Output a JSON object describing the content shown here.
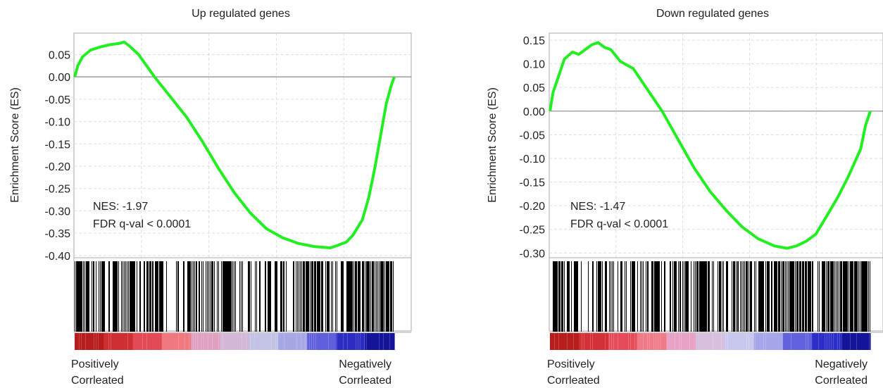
{
  "chart_data": [
    {
      "type": "line",
      "title": "Up regulated genes",
      "ylabel": "Enrichment Score (ES)",
      "ylim": [
        -0.405,
        0.098
      ],
      "yticks": [
        0.05,
        0.0,
        -0.05,
        -0.1,
        -0.15,
        -0.2,
        -0.25,
        -0.3,
        -0.35,
        -0.4
      ],
      "ytick_labels": [
        "0.05",
        "0.00",
        "-0.05",
        "-0.10",
        "-0.15",
        "-0.20",
        "-0.25",
        "-0.30",
        "-0.35",
        "-0.40"
      ],
      "grid": true,
      "line_color": "#22ee22",
      "annotation_lines": [
        "NES: -1.97",
        "FDR q-val < 0.0001"
      ],
      "x_left_label": [
        "Positively",
        "Corrleated"
      ],
      "x_right_label": [
        "Negatively",
        "Corrleated"
      ],
      "series": [
        {
          "x": [
            0,
            0.01,
            0.025,
            0.05,
            0.08,
            0.11,
            0.14,
            0.155,
            0.17,
            0.2,
            0.25,
            0.3,
            0.35,
            0.4,
            0.45,
            0.5,
            0.55,
            0.6,
            0.65,
            0.7,
            0.75,
            0.8,
            0.82,
            0.85,
            0.87,
            0.9,
            0.92,
            0.94,
            0.96,
            0.975,
            0.99,
            1.0
          ],
          "y": [
            0,
            0.025,
            0.045,
            0.06,
            0.067,
            0.072,
            0.075,
            0.078,
            0.07,
            0.05,
            0.0,
            -0.045,
            -0.09,
            -0.145,
            -0.205,
            -0.26,
            -0.305,
            -0.34,
            -0.36,
            -0.373,
            -0.38,
            -0.383,
            -0.378,
            -0.37,
            -0.355,
            -0.32,
            -0.27,
            -0.2,
            -0.12,
            -0.06,
            -0.02,
            0.0
          ]
        }
      ],
      "hits_density": [
        0.9,
        0.7,
        0.6,
        0.9,
        0.5,
        0.8,
        0.4,
        0.6,
        0.7,
        0.9,
        0.8,
        0.6,
        0.5,
        0.7,
        0.6,
        0.8,
        0.9,
        0.7,
        0.8,
        0.95,
        1.0,
        1.0
      ],
      "colorbar": [
        "#b81d1d",
        "#cf2f33",
        "#e24b55",
        "#f07880",
        "#e0a0c0",
        "#d3b8d8",
        "#c3c3e6",
        "#a7a7e6",
        "#6060dc",
        "#2c2cc2",
        "#14149a"
      ]
    },
    {
      "type": "line",
      "title": "Down regulated genes",
      "ylabel": "Enrichment Score (ES)",
      "ylim": [
        -0.31,
        0.165
      ],
      "yticks": [
        0.15,
        0.1,
        0.05,
        0.0,
        -0.05,
        -0.1,
        -0.15,
        -0.2,
        -0.25,
        -0.3
      ],
      "ytick_labels": [
        "0.15",
        "0.10",
        "0.05",
        "0.00",
        "-0.05",
        "-0.10",
        "-0.15",
        "-0.20",
        "-0.25",
        "-0.30"
      ],
      "grid": true,
      "line_color": "#22ee22",
      "annotation_lines": [
        "NES: -1.47",
        "FDR q-val < 0.0001"
      ],
      "x_left_label": [
        "Positively",
        "Corrleated"
      ],
      "x_right_label": [
        "Negatively",
        "Corrleated"
      ],
      "series": [
        {
          "x": [
            0,
            0.01,
            0.025,
            0.045,
            0.07,
            0.09,
            0.11,
            0.13,
            0.15,
            0.17,
            0.19,
            0.22,
            0.26,
            0.3,
            0.35,
            0.4,
            0.45,
            0.5,
            0.55,
            0.6,
            0.65,
            0.7,
            0.74,
            0.77,
            0.8,
            0.83,
            0.87,
            0.9,
            0.93,
            0.95,
            0.97,
            0.985,
            1.0
          ],
          "y": [
            0,
            0.04,
            0.07,
            0.11,
            0.125,
            0.12,
            0.13,
            0.14,
            0.145,
            0.135,
            0.13,
            0.105,
            0.09,
            0.05,
            0.0,
            -0.06,
            -0.12,
            -0.17,
            -0.21,
            -0.245,
            -0.27,
            -0.285,
            -0.29,
            -0.285,
            -0.275,
            -0.26,
            -0.215,
            -0.18,
            -0.14,
            -0.11,
            -0.08,
            -0.03,
            0.0
          ]
        }
      ],
      "hits_density": [
        0.8,
        0.7,
        0.5,
        0.7,
        0.6,
        0.8,
        0.5,
        0.6,
        0.7,
        0.8,
        0.9,
        0.7,
        0.85,
        0.9,
        1.0,
        0.8,
        0.9,
        1.0,
        1.0,
        1.0
      ],
      "colorbar": [
        "#b81d1d",
        "#d43038",
        "#e54b58",
        "#f07a86",
        "#e8a2c6",
        "#d7c0de",
        "#c8c8ee",
        "#a6a6ea",
        "#6262de",
        "#2d2dc8",
        "#14149a"
      ]
    }
  ]
}
